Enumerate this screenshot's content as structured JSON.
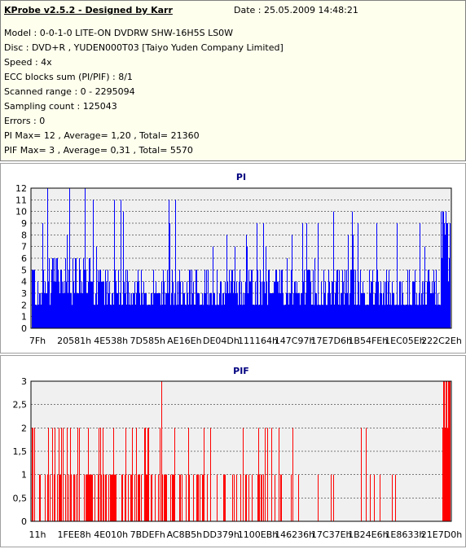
{
  "header": {
    "title": "KProbe v2.5.2 - Designed by Karr",
    "date": "Date : 25.05.2009 14:48:21"
  },
  "info_lines": [
    "Model : 0-0-1-0 LITE-ON DVDRW SHW-16H5S  LS0W",
    "Disc : DVD+R , YUDEN000T03 [Taiyo Yuden Company Limited]",
    "Speed : 4x",
    "ECC blocks sum (PI/PIF) : 8/1",
    "Scanned range : 0 - 2295094",
    "Sampling count : 125043",
    "Errors : 0",
    "PI Max= 12 , Average= 1,20 , Total= 21360",
    "PIF Max= 3 , Average= 0,31 , Total= 5570"
  ],
  "chart_data": [
    {
      "type": "bar",
      "title": "PI",
      "color": "#0000ff",
      "ylim": [
        0,
        12
      ],
      "yticks": [
        "0",
        "1",
        "2",
        "3",
        "4",
        "5",
        "6",
        "7",
        "8",
        "9",
        "10",
        "11",
        "12"
      ],
      "xticks": [
        "7Fh",
        "20581h",
        "4E538h",
        "7D585h",
        "AE16Eh",
        "DE04Dh",
        "111164h",
        "147C97h",
        "17E7D6h",
        "1B54FEh",
        "1EC05Eh",
        "222C2Eh"
      ],
      "grid": true,
      "max": 12,
      "average": 1.2,
      "segments": [
        {
          "from": 0.0,
          "to": 0.02,
          "base": 3,
          "peak": 6
        },
        {
          "from": 0.02,
          "to": 0.15,
          "base": 4,
          "peak": 12
        },
        {
          "from": 0.15,
          "to": 0.35,
          "base": 3,
          "peak": 11
        },
        {
          "from": 0.35,
          "to": 0.5,
          "base": 3,
          "peak": 8
        },
        {
          "from": 0.5,
          "to": 0.7,
          "base": 3,
          "peak": 9
        },
        {
          "from": 0.7,
          "to": 0.95,
          "base": 3,
          "peak": 10
        },
        {
          "from": 0.95,
          "to": 0.975,
          "base": 3,
          "peak": 6
        },
        {
          "from": 0.975,
          "to": 1.0,
          "base": 8,
          "peak": 10
        }
      ]
    },
    {
      "type": "bar",
      "title": "PIF",
      "color": "#ff0000",
      "ylim": [
        0,
        3
      ],
      "yticks": [
        "0",
        "0,5",
        "1",
        "1,5",
        "2",
        "2,5",
        "3"
      ],
      "xticks": [
        "11h",
        "1FEE8h",
        "4E010h",
        "7BDEFh",
        "AC8B5h",
        "DD379h",
        "1100EBh",
        "146236h",
        "17C37Eh",
        "1B24E6h",
        "1E8633h",
        "21E7D0h"
      ],
      "grid": true,
      "max": 3,
      "average": 0.31,
      "segments": [
        {
          "from": 0.0,
          "to": 0.25,
          "density": 0.55,
          "peak": 2
        },
        {
          "from": 0.25,
          "to": 0.4,
          "density": 0.45,
          "peak": 2
        },
        {
          "from": 0.4,
          "to": 0.6,
          "density": 0.3,
          "peak": 2
        },
        {
          "from": 0.6,
          "to": 0.8,
          "density": 0.12,
          "peak": 2
        },
        {
          "from": 0.8,
          "to": 0.98,
          "density": 0.05,
          "peak": 2
        },
        {
          "from": 0.98,
          "to": 1.0,
          "density": 1.0,
          "peak": 3
        }
      ]
    }
  ]
}
